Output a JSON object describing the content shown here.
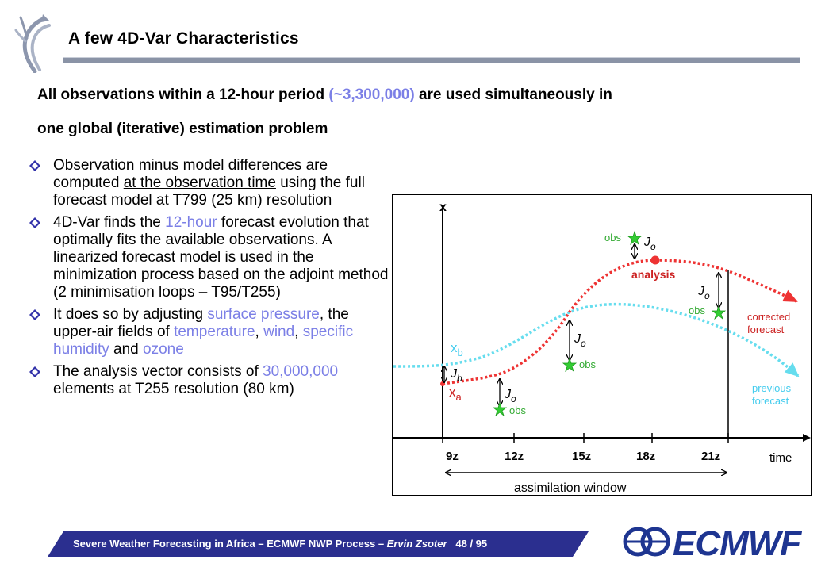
{
  "title": "A few 4D-Var Characteristics",
  "intro": {
    "line1_pre": "All observations within a 12-hour period ",
    "line1_hl": "(~3,300,000)",
    "line1_post": " are used simultaneously in",
    "line2": "one global (iterative) estimation problem"
  },
  "bullets": {
    "b1_a": "Observation minus model differences are computed ",
    "b1_ul": "at the observation time",
    "b1_b": " using the full forecast model at  T799 (25 km) resolution",
    "b2_a": "4D-Var finds the ",
    "b2_hl": "12-hour",
    "b2_b": " forecast evolution that optimally fits the available observations. A linearized forecast model is used in the minimization process based on the adjoint method (2 minimisation loops – T95/T255)",
    "b3_a": "It does so by adjusting  ",
    "b3_hl1": "surface pressure",
    "b3_b": ", the upper-air fields of ",
    "b3_hl2": "temperature",
    "b3_c": ",  ",
    "b3_hl3": "wind",
    "b3_d": ",  ",
    "b3_hl4": "specific humidity",
    "b3_e": " and ",
    "b3_hl5": "ozone",
    "b4_a": "The analysis vector consists of ",
    "b4_hl": "30,000,000",
    "b4_b": " elements at T255 resolution (80 km)"
  },
  "figure": {
    "y_axis_label": "x",
    "x_axis_label": "time",
    "time_ticks": [
      "9z",
      "12z",
      "15z",
      "18z",
      "21z"
    ],
    "window_label": "assimilation window",
    "xb_label": "x",
    "xb_sub": "b",
    "xa_label": "x",
    "xa_sub": "a",
    "jb_label": "J",
    "jb_sub": "b",
    "jo_label": "J",
    "jo_sub": "o",
    "obs_label": "obs",
    "analysis_label": "analysis",
    "corrected_label_1": "corrected",
    "corrected_label_2": "forecast",
    "previous_label_1": "previous",
    "previous_label_2": "forecast",
    "colors": {
      "analysis": "#ee3333",
      "background": "#66ddee",
      "obs": "#33cc33",
      "label_red": "#cc2222",
      "label_cyan": "#44ccee"
    }
  },
  "footer": {
    "text": "Severe Weather Forecasting in Africa – ECMWF NWP Process – ",
    "author": "Ervin Zsoter",
    "page": "   48 / 95"
  },
  "logo_text": "ECMWF",
  "accent_color": "#7b7fe6",
  "footer_color": "#2b2f8f"
}
